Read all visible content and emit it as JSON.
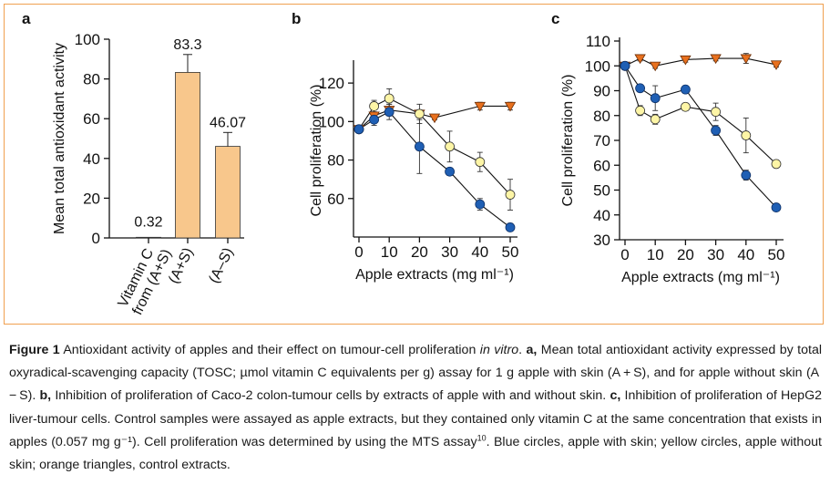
{
  "colors": {
    "frame": "#f0a050",
    "bar_fill": "#f8c78c",
    "blue": "#1f5fb4",
    "yellow": "#fdf5a6",
    "orange": "#e8701e"
  },
  "chart_data": [
    {
      "panel": "a",
      "type": "bar",
      "ylabel": "Mean total antioxidant activity",
      "ylim": [
        0,
        100
      ],
      "yticks": [
        0,
        20,
        40,
        60,
        80,
        100
      ],
      "categories": [
        "Vitamin C from (A+S)",
        "(A+S)",
        "(A–S)"
      ],
      "category_lines": [
        [
          "Vitamin C",
          "from (A+S)"
        ],
        [
          "(A+S)"
        ],
        [
          "(A–S)"
        ]
      ],
      "values": [
        0.32,
        83.3,
        46.07
      ],
      "value_labels": [
        "0.32",
        "83.3",
        "46.07"
      ],
      "errors": [
        0,
        9,
        7
      ]
    },
    {
      "panel": "b",
      "type": "line",
      "xlabel": "Apple extracts (mg ml⁻¹)",
      "ylabel": "Cell proliferation (%)",
      "xlim": [
        0,
        50
      ],
      "ylim": [
        40,
        130
      ],
      "xticks": [
        0,
        10,
        20,
        30,
        40,
        50
      ],
      "yticks": [
        60,
        80,
        100,
        120
      ],
      "series": [
        {
          "name": "apple with skin",
          "marker": "circle",
          "color": "blue",
          "x": [
            0,
            5,
            10,
            20,
            30,
            40,
            50
          ],
          "y": [
            96,
            101,
            105,
            87,
            74,
            57,
            45
          ],
          "err": [
            0,
            3,
            4,
            14,
            2,
            3,
            2
          ]
        },
        {
          "name": "apple without skin",
          "marker": "circle",
          "color": "yellow",
          "x": [
            0,
            5,
            10,
            20,
            30,
            40,
            50
          ],
          "y": [
            96,
            108,
            112,
            104,
            87,
            79,
            62
          ],
          "err": [
            0,
            3,
            5,
            5,
            8,
            5,
            8
          ]
        },
        {
          "name": "control extracts",
          "marker": "triangle",
          "color": "orange",
          "x": [
            0,
            5,
            10,
            20,
            25,
            40,
            50
          ],
          "y": [
            96,
            103,
            106,
            104,
            102,
            108,
            108
          ],
          "err": [
            0,
            2,
            3,
            2,
            1,
            2,
            2
          ]
        }
      ]
    },
    {
      "panel": "c",
      "type": "line",
      "xlabel": "Apple extracts (mg ml⁻¹)",
      "ylabel": "Cell proliferation (%)",
      "xlim": [
        0,
        50
      ],
      "ylim": [
        30,
        110
      ],
      "xticks": [
        0,
        10,
        20,
        30,
        40,
        50
      ],
      "yticks": [
        30,
        40,
        50,
        60,
        70,
        80,
        90,
        100,
        110
      ],
      "series": [
        {
          "name": "apple with skin",
          "marker": "circle",
          "color": "blue",
          "x": [
            0,
            5,
            10,
            20,
            30,
            40,
            50
          ],
          "y": [
            100,
            91,
            87,
            90.5,
            74,
            56,
            43
          ],
          "err": [
            0,
            1,
            5,
            1,
            2,
            2,
            1
          ]
        },
        {
          "name": "apple without skin",
          "marker": "circle",
          "color": "yellow",
          "x": [
            0,
            5,
            10,
            20,
            30,
            40,
            50
          ],
          "y": [
            100,
            82,
            78.5,
            83.5,
            81.5,
            72,
            60.5
          ],
          "err": [
            0,
            2,
            2,
            1.5,
            3.5,
            7,
            1
          ]
        },
        {
          "name": "control extracts",
          "marker": "triangle",
          "color": "orange",
          "x": [
            0,
            5,
            10,
            20,
            30,
            40,
            50
          ],
          "y": [
            100,
            103,
            100,
            102.5,
            103,
            103,
            100.5
          ],
          "err": [
            0,
            1,
            1,
            1,
            1,
            2,
            1
          ]
        }
      ]
    }
  ],
  "caption": {
    "figure_label": "Figure 1",
    "intro": " Antioxidant activity of apples and their effect on tumour-cell proliferation ",
    "in_vitro": "in vitro",
    "intro_end": ". ",
    "a_label": "a,",
    "a_text": " Mean total antioxidant activity expressed by total oxyradical-scavenging capacity (TOSC; µmol vitamin C equivalents per g) assay for 1 g apple with skin (A + S), and for apple without skin (A − S). ",
    "b_label": "b,",
    "b_text": " Inhibition of proliferation of Caco-2 colon-tumour cells by extracts of apple with and without skin. ",
    "c_label": "c,",
    "c_text": " Inhibition of proliferation of HepG2 liver-tumour cells. Control samples were assayed as apple extracts, but they contained only vitamin C at the same concentration that exists in apples (0.057 mg g⁻¹). Cell proliferation was determined by using the MTS assay",
    "ref": "10",
    "tail": ". Blue circles, apple with skin; yellow circles, apple without skin; orange triangles, control extracts."
  }
}
